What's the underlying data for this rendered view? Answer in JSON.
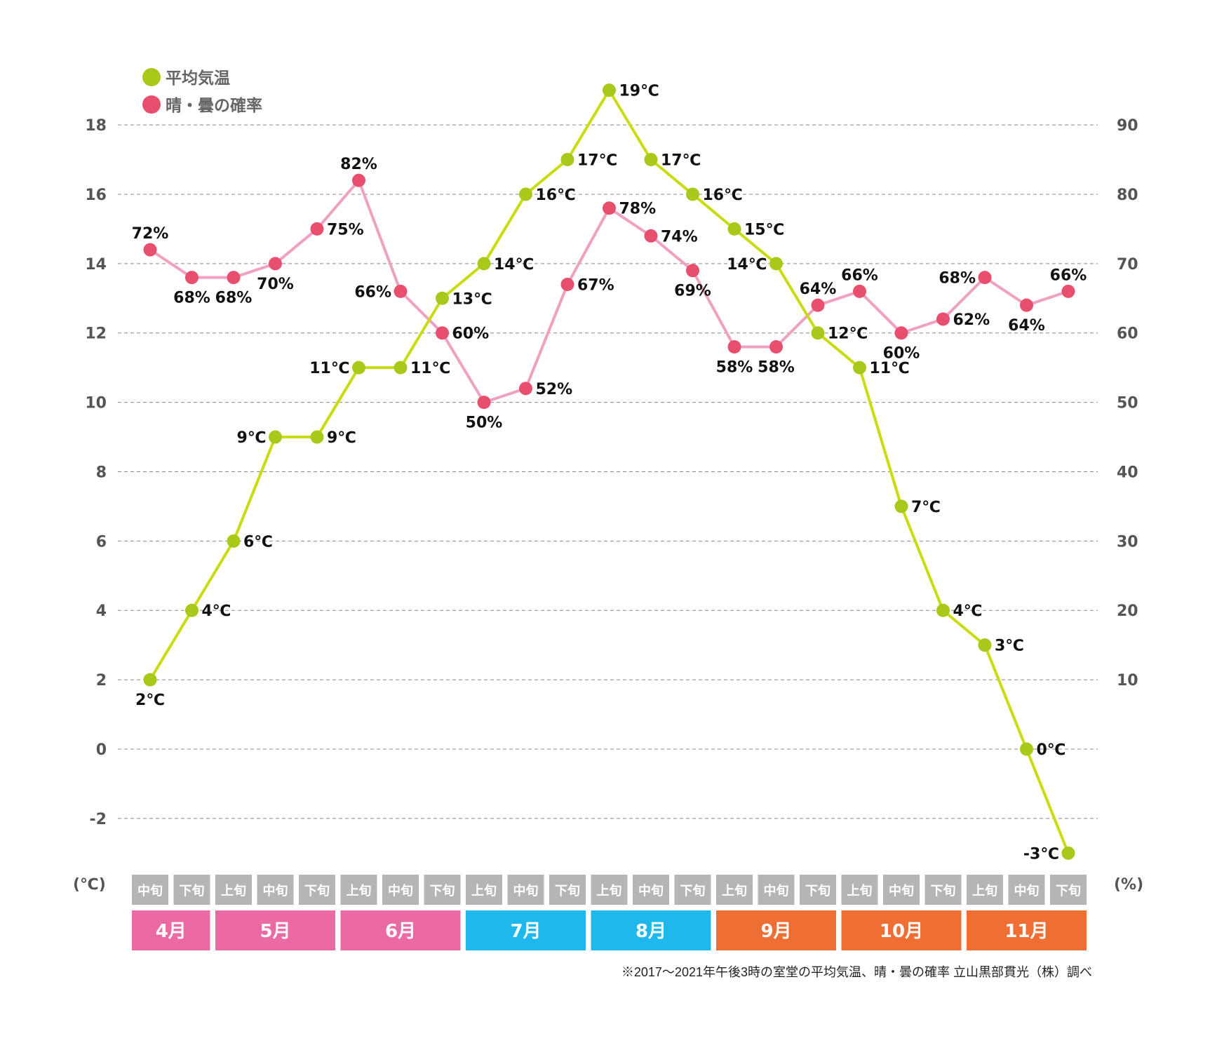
{
  "chart_data": {
    "type": "line",
    "title": "",
    "legend": {
      "placement": "top-left",
      "entries": [
        {
          "name": "平均気温",
          "color": "#A8C91A"
        },
        {
          "name": "晴・曇の確率",
          "color": "#E84E6E"
        }
      ]
    },
    "y_left": {
      "label": "(℃)",
      "ticks": [
        "18",
        "16",
        "14",
        "12",
        "10",
        "8",
        "6",
        "4",
        "2",
        "0",
        "-2"
      ],
      "tick_values": [
        18,
        16,
        14,
        12,
        10,
        8,
        6,
        4,
        2,
        0,
        -2
      ],
      "range": [
        -3,
        19
      ]
    },
    "y_right": {
      "label": "(%)",
      "ticks": [
        "90",
        "80",
        "70",
        "60",
        "50",
        "40",
        "30",
        "20",
        "10"
      ],
      "tick_values": [
        90,
        80,
        70,
        60,
        50,
        40,
        30,
        20,
        10
      ],
      "range": [
        -15,
        95
      ]
    },
    "grid": true,
    "x": [
      "4月中旬",
      "4月下旬",
      "5月上旬",
      "5月中旬",
      "5月下旬",
      "6月上旬",
      "6月中旬",
      "6月下旬",
      "7月上旬",
      "7月中旬",
      "7月下旬",
      "8月上旬",
      "8月中旬",
      "8月下旬",
      "9月上旬",
      "9月中旬",
      "9月下旬",
      "10月上旬",
      "10月中旬",
      "10月下旬",
      "11月上旬",
      "11月中旬",
      "11月下旬"
    ],
    "decades": [
      "中旬",
      "下旬",
      "上旬",
      "中旬",
      "下旬",
      "上旬",
      "中旬",
      "下旬",
      "上旬",
      "中旬",
      "下旬",
      "上旬",
      "中旬",
      "下旬",
      "上旬",
      "中旬",
      "下旬",
      "上旬",
      "中旬",
      "下旬",
      "上旬",
      "中旬",
      "下旬"
    ],
    "months": [
      {
        "label": "4月",
        "span": 2,
        "color": "#EC6AA3"
      },
      {
        "label": "5月",
        "span": 3,
        "color": "#EC6AA3"
      },
      {
        "label": "6月",
        "span": 3,
        "color": "#EC6AA3"
      },
      {
        "label": "7月",
        "span": 3,
        "color": "#1FB8EC"
      },
      {
        "label": "8月",
        "span": 3,
        "color": "#1FB8EC"
      },
      {
        "label": "9月",
        "span": 3,
        "color": "#EE6E34"
      },
      {
        "label": "10月",
        "span": 3,
        "color": "#EE6E34"
      },
      {
        "label": "11月",
        "span": 3,
        "color": "#EE6E34"
      }
    ],
    "series": [
      {
        "name": "平均気温",
        "axis": "left",
        "unit": "℃",
        "line_color": "#C8DC0F",
        "dot_color": "#A8C91A",
        "values": [
          2,
          4,
          6,
          9,
          9,
          11,
          11,
          13,
          14,
          16,
          17,
          19,
          17,
          16,
          15,
          14,
          12,
          11,
          7,
          4,
          3,
          0,
          -3
        ],
        "labels": [
          "2℃",
          "4℃",
          "6℃",
          "9℃",
          "9℃",
          "11℃",
          "11℃",
          "13℃",
          "14℃",
          "16℃",
          "17℃",
          "19℃",
          "17℃",
          "16℃",
          "15℃",
          "14℃",
          "12℃",
          "11℃",
          "7℃",
          "4℃",
          "3℃",
          "0℃",
          "-3℃"
        ]
      },
      {
        "name": "晴・曇の確率",
        "axis": "right",
        "unit": "%",
        "line_color": "#F0A0C0",
        "dot_color": "#E84E6E",
        "values": [
          72,
          68,
          68,
          70,
          75,
          82,
          66,
          60,
          50,
          52,
          67,
          78,
          74,
          69,
          58,
          58,
          64,
          66,
          60,
          62,
          68,
          64,
          66
        ],
        "labels": [
          "72%",
          "68%",
          "68%",
          "70%",
          "75%",
          "82%",
          "66%",
          "60%",
          "50%",
          "52%",
          "67%",
          "78%",
          "74%",
          "69%",
          "58%",
          "58%",
          "64%",
          "66%",
          "60%",
          "62%",
          "68%",
          "64%",
          "66%"
        ]
      }
    ],
    "note": "※2017～2021年午後3時の室堂の平均気温、晴・曇の確率 立山黒部貫光（株）調べ"
  }
}
